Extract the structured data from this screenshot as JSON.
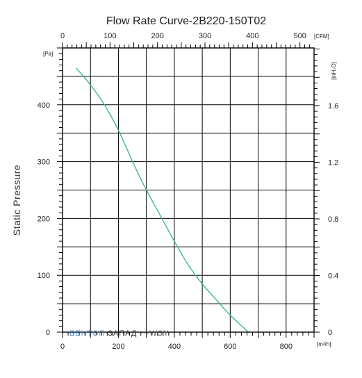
{
  "chart_data": {
    "type": "line",
    "title": "Flow Rate Curve-2B220-150T02",
    "ylabel": "Static Pressure",
    "units": {
      "x_bottom": "[m³/h]",
      "x_top": "[CFM]",
      "y_left": "[Pa]",
      "y_right": "[inH₂O]"
    },
    "xlim": [
      0,
      900
    ],
    "ylim": [
      0,
      500
    ],
    "x_ticks": [
      "0",
      "200",
      "400",
      "600",
      "800"
    ],
    "y_ticks": [
      "0",
      "100",
      "200",
      "300",
      "400"
    ],
    "top_ticks": [
      "0",
      "100",
      "200",
      "300",
      "400",
      "500"
    ],
    "right_ticks": [
      "0",
      "0.4",
      "0.8",
      "1.2",
      "1.6"
    ],
    "grid": true,
    "series": [
      {
        "color": "#3cb890",
        "x": [
          48,
          100,
          150,
          200,
          260,
          300,
          350,
          400,
          450,
          500,
          550,
          600,
          650,
          666
        ],
        "y": [
          465,
          435,
          400,
          355,
          290,
          250,
          205,
          160,
          118,
          85,
          57,
          30,
          7,
          0
        ]
      }
    ]
  },
  "watermark": {
    "brand_blue": "ВЕНТОП",
    "brand_dark": "ЗАПАД",
    "suffix": "---WSY"
  }
}
